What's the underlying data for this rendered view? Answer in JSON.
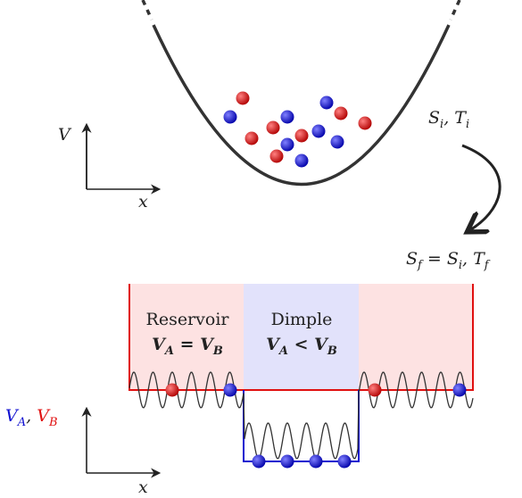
{
  "top_panel": {
    "y_axis": "V",
    "x_axis": "x",
    "initial_state": [
      "S",
      "i",
      ", T",
      "i"
    ]
  },
  "final_state": [
    "S",
    "f",
    " = S",
    "i",
    ", T",
    "f"
  ],
  "bottom_panel": {
    "reservoir": {
      "title": "Reservoir",
      "condition": [
        "V",
        "A",
        " = V",
        "B"
      ]
    },
    "dimple": {
      "title": "Dimple",
      "condition": [
        "V",
        "A",
        " < V",
        "B"
      ]
    },
    "y_axis": [
      "V",
      "A",
      ", ",
      "V",
      "B"
    ],
    "x_axis": "x"
  }
}
